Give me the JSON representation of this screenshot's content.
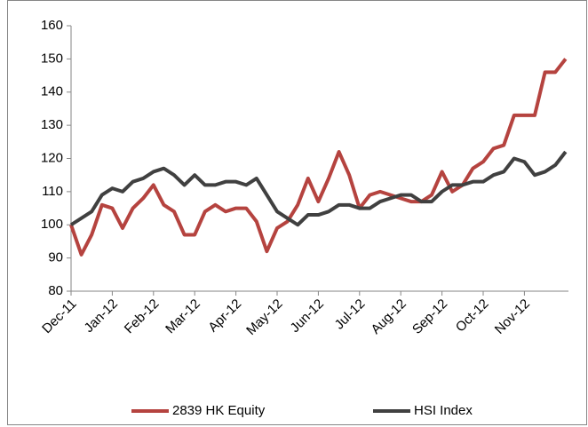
{
  "chart_data": {
    "type": "line",
    "categories": [
      "Dec-11",
      null,
      null,
      null,
      "Jan-12",
      null,
      null,
      null,
      "Feb-12",
      null,
      null,
      null,
      "Mar-12",
      null,
      null,
      null,
      "Apr-12",
      null,
      null,
      null,
      "May-12",
      null,
      null,
      null,
      "Jun-12",
      null,
      null,
      null,
      "Jul-12",
      null,
      null,
      null,
      "Aug-12",
      null,
      null,
      null,
      "Sep-12",
      null,
      null,
      null,
      "Oct-12",
      null,
      null,
      null,
      "Nov-12",
      null,
      null,
      null,
      null
    ],
    "series": [
      {
        "name": "2839 HK Equity",
        "color": "#b5433f",
        "values": [
          100,
          91,
          97,
          106,
          105,
          99,
          105,
          108,
          112,
          106,
          104,
          97,
          97,
          104,
          106,
          104,
          105,
          105,
          101,
          92,
          99,
          101,
          106,
          114,
          107,
          114,
          122,
          115,
          105,
          109,
          110,
          109,
          108,
          107,
          107,
          109,
          116,
          110,
          112,
          117,
          119,
          123,
          124,
          133,
          133,
          133,
          146,
          146,
          150
        ]
      },
      {
        "name": "HSI Index",
        "color": "#404040",
        "values": [
          100,
          102,
          104,
          109,
          111,
          110,
          113,
          114,
          116,
          117,
          115,
          112,
          115,
          112,
          112,
          113,
          113,
          112,
          114,
          109,
          104,
          102,
          100,
          103,
          103,
          104,
          106,
          106,
          105,
          105,
          107,
          108,
          109,
          109,
          107,
          107,
          110,
          112,
          112,
          113,
          113,
          115,
          116,
          120,
          119,
          115,
          116,
          118,
          122
        ]
      }
    ],
    "ylim": [
      80,
      160
    ],
    "yticks": [
      80,
      90,
      100,
      110,
      120,
      130,
      140,
      150,
      160
    ],
    "grid": false,
    "legend": "bottom"
  }
}
